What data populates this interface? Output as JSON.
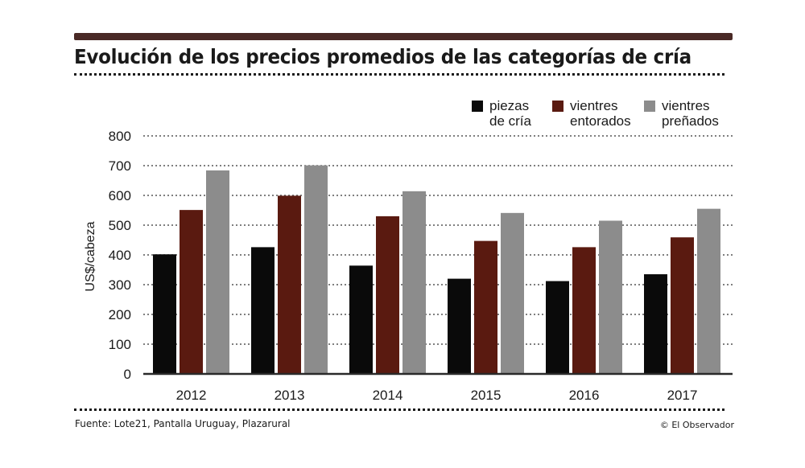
{
  "header": {
    "title": "Evolución de los precios promedios de las categorías de cría"
  },
  "footer": {
    "source": "Fuente: Lote21, Pantalla Uruguay, Plazarural",
    "credit": "© El Observador"
  },
  "colors": {
    "bar_rule": "#4a2a26",
    "piezas": "#0a0a0a",
    "entorados": "#5a1a10",
    "prenados": "#8c8c8c",
    "grid": "#555555",
    "axis": "#2a2a2a"
  },
  "chart_data": {
    "type": "bar",
    "title": "Evolución de los precios promedios de las categorías de cría",
    "xlabel": "",
    "ylabel": "US$/cabeza",
    "ylim": [
      0,
      800
    ],
    "yticks": [
      0,
      100,
      200,
      300,
      400,
      500,
      600,
      700,
      800
    ],
    "grid": true,
    "legend_position": "top-right",
    "categories": [
      "2012",
      "2013",
      "2014",
      "2015",
      "2016",
      "2017"
    ],
    "series": [
      {
        "name": "piezas de cría",
        "label_lines": [
          "piezas",
          "de cría"
        ],
        "color": "#0a0a0a",
        "values": [
          402,
          426,
          364,
          320,
          312,
          335
        ]
      },
      {
        "name": "vientres entorados",
        "label_lines": [
          "vientres",
          "entorados"
        ],
        "color": "#5a1a10",
        "values": [
          551,
          599,
          530,
          447,
          426,
          459
        ]
      },
      {
        "name": "vientres preñados",
        "label_lines": [
          "vientres",
          "preñados"
        ],
        "color": "#8c8c8c",
        "values": [
          684,
          701,
          614,
          541,
          515,
          555
        ]
      }
    ]
  }
}
